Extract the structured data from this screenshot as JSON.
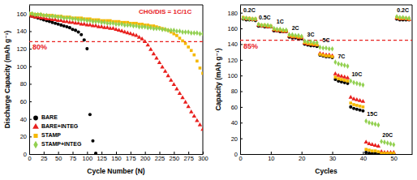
{
  "chart_data": [
    {
      "type": "scatter",
      "xlabel": "Cycle Number (N)",
      "ylabel": "Discharge Capacity (mAh g⁻¹)",
      "xlim": [
        0,
        300
      ],
      "xticks": [
        0,
        25,
        50,
        75,
        100,
        125,
        150,
        175,
        200,
        225,
        250,
        275,
        300
      ],
      "ylim": [
        0,
        170
      ],
      "yticks": [
        0,
        20,
        40,
        60,
        80,
        100,
        120,
        140,
        160
      ],
      "legend": "lower left",
      "annotations": [
        {
          "text": "CHG/DIS = 1C/1C",
          "x": 235,
          "y": 162
        }
      ],
      "reference_line": {
        "y": 128,
        "label": "80%"
      },
      "x": [
        0,
        5,
        10,
        15,
        20,
        25,
        30,
        35,
        40,
        45,
        50,
        55,
        60,
        65,
        70,
        75,
        80,
        85,
        90,
        95,
        100,
        105,
        110,
        115,
        120,
        125,
        130,
        135,
        140,
        145,
        150,
        155,
        160,
        165,
        170,
        175,
        180,
        185,
        190,
        195,
        200,
        205,
        210,
        215,
        220,
        225,
        230,
        235,
        240,
        245,
        250,
        255,
        260,
        265,
        270,
        275,
        280,
        285,
        290,
        295,
        300
      ],
      "series": [
        {
          "name": "BARE",
          "color": "#000000",
          "marker": "circle",
          "values": [
            158,
            157,
            156,
            155,
            154,
            153,
            152,
            151,
            150,
            149,
            148,
            147,
            146,
            145,
            144,
            142,
            141,
            139,
            136,
            130,
            120,
            45,
            15,
            1,
            null,
            null,
            null,
            null,
            null,
            null,
            null,
            null,
            null,
            null,
            null,
            null,
            null,
            null,
            null,
            null,
            null,
            null,
            null,
            null,
            null,
            null,
            null,
            null,
            null,
            null,
            null,
            null,
            null,
            null,
            null,
            null,
            null,
            null,
            null,
            null,
            null
          ]
        },
        {
          "name": "BARE+INTEG",
          "color": "#e8201e",
          "marker": "triangle",
          "values": [
            158,
            157,
            156,
            156,
            155,
            155,
            154,
            154,
            153,
            153,
            152,
            152,
            151,
            151,
            150,
            150,
            149,
            149,
            148,
            148,
            147,
            147,
            146,
            146,
            145,
            145,
            144,
            144,
            143,
            143,
            142,
            141,
            140,
            139,
            138,
            137,
            136,
            135,
            133,
            131,
            128,
            124,
            119,
            114,
            109,
            104,
            99,
            94,
            89,
            84,
            79,
            74,
            69,
            64,
            59,
            54,
            48,
            43,
            38,
            33,
            28
          ]
        },
        {
          "name": "STAMP",
          "color": "#f5b800",
          "marker": "square",
          "values": [
            160,
            160,
            159,
            159,
            159,
            158,
            158,
            158,
            158,
            157,
            157,
            157,
            156,
            156,
            156,
            155,
            155,
            155,
            155,
            154,
            154,
            154,
            153,
            153,
            153,
            152,
            152,
            152,
            152,
            151,
            151,
            151,
            150,
            150,
            150,
            149,
            149,
            149,
            148,
            148,
            147,
            147,
            146,
            146,
            145,
            144,
            143,
            142,
            141,
            139,
            137,
            135,
            132,
            129,
            126,
            122,
            118,
            113,
            106,
            98,
            92
          ]
        },
        {
          "name": "STAMP+INTEG",
          "color": "#92d050",
          "marker": "diamond",
          "values": [
            160,
            160,
            159,
            159,
            159,
            158,
            158,
            157,
            157,
            157,
            156,
            156,
            155,
            155,
            155,
            154,
            154,
            153,
            153,
            153,
            152,
            152,
            151,
            151,
            151,
            150,
            150,
            149,
            149,
            149,
            148,
            148,
            148,
            147,
            147,
            147,
            146,
            146,
            145,
            145,
            145,
            144,
            144,
            143,
            143,
            143,
            142,
            142,
            141,
            141,
            141,
            140,
            140,
            139,
            139,
            139,
            138,
            138,
            138,
            137,
            137
          ]
        }
      ]
    },
    {
      "type": "scatter",
      "xlabel": "Cycles",
      "ylabel": "Capacity (mAh g⁻¹)",
      "xlim": [
        0,
        56
      ],
      "xticks": [
        0,
        10,
        20,
        30,
        40,
        50
      ],
      "ylim": [
        0,
        190
      ],
      "yticks": [
        0,
        20,
        40,
        60,
        80,
        100,
        120,
        140,
        160,
        180
      ],
      "annotations": [
        {
          "text": "0.2C",
          "x": 3,
          "y": 183
        },
        {
          "text": "0.5C",
          "x": 8,
          "y": 173
        },
        {
          "text": "1C",
          "x": 13,
          "y": 168
        },
        {
          "text": "2C",
          "x": 18,
          "y": 160
        },
        {
          "text": "3C",
          "x": 23,
          "y": 152
        },
        {
          "text": "5C",
          "x": 28,
          "y": 144
        },
        {
          "text": "7C",
          "x": 33,
          "y": 124
        },
        {
          "text": "10C",
          "x": 38,
          "y": 101
        },
        {
          "text": "15C",
          "x": 43,
          "y": 50
        },
        {
          "text": "20C",
          "x": 48,
          "y": 24
        },
        {
          "text": "0.2C",
          "x": 53,
          "y": 183
        }
      ],
      "reference_line": {
        "y": 145,
        "label": "85%"
      },
      "x": [
        1,
        2,
        3,
        4,
        5,
        6,
        7,
        8,
        9,
        10,
        11,
        12,
        13,
        14,
        15,
        16,
        17,
        18,
        19,
        20,
        21,
        22,
        23,
        24,
        25,
        26,
        27,
        28,
        29,
        30,
        31,
        32,
        33,
        34,
        35,
        36,
        37,
        38,
        39,
        40,
        41,
        42,
        43,
        44,
        45,
        46,
        47,
        48,
        49,
        50,
        51,
        52,
        53,
        54,
        55
      ],
      "series": [
        {
          "name": "BARE",
          "color": "#000000",
          "marker": "circle",
          "values": [
            172,
            171,
            171,
            171,
            170,
            163,
            163,
            162,
            162,
            162,
            157,
            157,
            156,
            156,
            156,
            149,
            148,
            148,
            147,
            147,
            140,
            139,
            138,
            138,
            137,
            126,
            125,
            124,
            124,
            123,
            95,
            93,
            92,
            91,
            90,
            60,
            58,
            57,
            56,
            55,
            2,
            1,
            1,
            1,
            1,
            0,
            0,
            0,
            0,
            0,
            172,
            171,
            171,
            171,
            171
          ]
        },
        {
          "name": "BARE+INTEG",
          "color": "#e8201e",
          "marker": "triangle",
          "values": [
            173,
            172,
            172,
            171,
            171,
            164,
            163,
            163,
            162,
            162,
            158,
            157,
            157,
            156,
            156,
            150,
            149,
            149,
            148,
            148,
            141,
            140,
            140,
            139,
            139,
            128,
            127,
            126,
            126,
            125,
            102,
            100,
            99,
            98,
            97,
            72,
            70,
            69,
            68,
            67,
            15,
            13,
            12,
            11,
            10,
            3,
            2,
            2,
            2,
            2,
            173,
            172,
            172,
            172,
            171
          ]
        },
        {
          "name": "STAMP",
          "color": "#f5b800",
          "marker": "square",
          "values": [
            174,
            173,
            173,
            172,
            172,
            165,
            164,
            164,
            163,
            163,
            159,
            158,
            158,
            157,
            157,
            151,
            150,
            150,
            149,
            149,
            142,
            141,
            140,
            140,
            139,
            127,
            126,
            125,
            125,
            124,
            98,
            96,
            95,
            94,
            93,
            65,
            63,
            62,
            61,
            60,
            6,
            5,
            4,
            4,
            3,
            1,
            1,
            1,
            1,
            1,
            174,
            173,
            173,
            173,
            172
          ]
        },
        {
          "name": "STAMP+INTEG",
          "color": "#92d050",
          "marker": "diamond",
          "values": [
            173,
            173,
            172,
            172,
            172,
            165,
            164,
            164,
            164,
            163,
            160,
            159,
            159,
            158,
            158,
            152,
            152,
            151,
            151,
            150,
            144,
            143,
            143,
            142,
            142,
            136,
            135,
            135,
            134,
            134,
            117,
            115,
            114,
            113,
            112,
            93,
            91,
            90,
            89,
            88,
            42,
            40,
            39,
            38,
            37,
            16,
            15,
            14,
            13,
            12,
            175,
            174,
            174,
            173,
            173
          ]
        }
      ]
    }
  ]
}
